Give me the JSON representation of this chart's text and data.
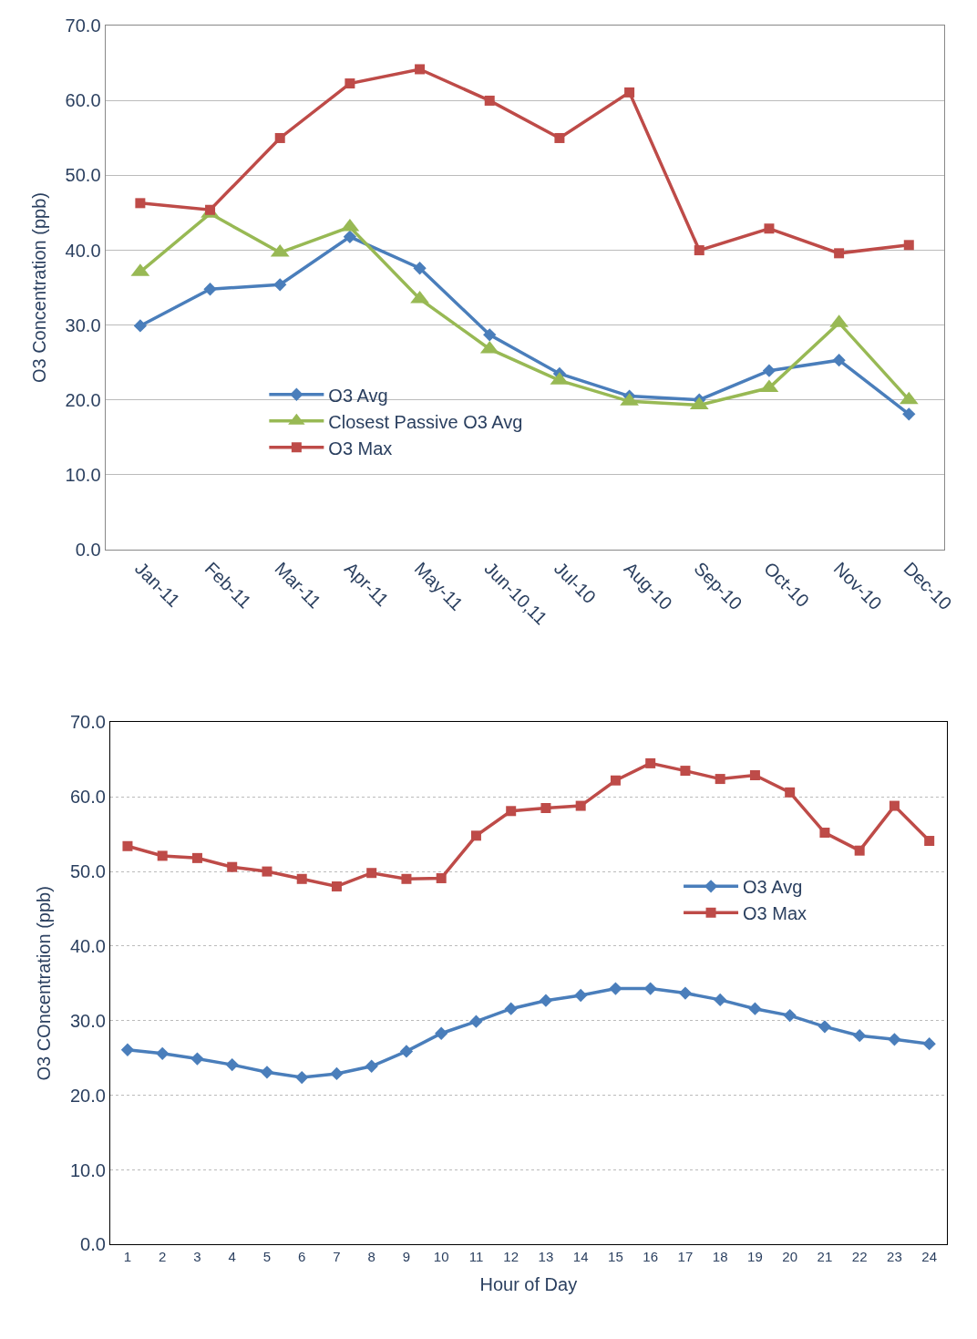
{
  "chart_data": [
    {
      "type": "line",
      "ylabel": "O3 Concentration (ppb)",
      "categories": [
        "Jan-11",
        "Feb-11",
        "Mar-11",
        "Apr-11",
        "May-11",
        "Jun-10,11",
        "Jul-10",
        "Aug-10",
        "Sep-10",
        "Oct-10",
        "Nov-10",
        "Dec-10"
      ],
      "series": [
        {
          "name": "O3 Avg",
          "color": "#4a7ebb",
          "marker": "diamond",
          "values": [
            29.9,
            34.8,
            35.4,
            41.8,
            37.6,
            28.7,
            23.5,
            20.5,
            20.0,
            23.9,
            25.3,
            18.1
          ]
        },
        {
          "name": "Closest Passive O3 Avg",
          "color": "#98b954",
          "marker": "triangle",
          "values": [
            37.1,
            44.9,
            39.7,
            43.1,
            33.5,
            26.8,
            22.6,
            19.8,
            19.3,
            21.6,
            30.3,
            20.0
          ]
        },
        {
          "name": "O3 Max",
          "color": "#be4b48",
          "marker": "square",
          "values": [
            46.3,
            45.4,
            55.0,
            62.3,
            64.2,
            60.0,
            55.0,
            61.1,
            40.0,
            42.9,
            39.6,
            40.7
          ]
        }
      ],
      "ylim": [
        0,
        70
      ],
      "yticks": [
        {
          "value": 0,
          "label": "0.0"
        },
        {
          "value": 10,
          "label": "10.0"
        },
        {
          "value": 20,
          "label": "20.0"
        },
        {
          "value": 30,
          "label": "30.0"
        },
        {
          "value": 40,
          "label": "40.0"
        },
        {
          "value": 50,
          "label": "50.0"
        },
        {
          "value": 60,
          "label": "60.0"
        },
        {
          "value": 70,
          "label": "70.0"
        }
      ],
      "grid": "y",
      "legend": "bottom left"
    },
    {
      "type": "line",
      "xlabel": "Hour of Day",
      "ylabel": "O3 COncentration (ppb)",
      "x": [
        1,
        2,
        3,
        4,
        5,
        6,
        7,
        8,
        9,
        10,
        11,
        12,
        13,
        14,
        15,
        16,
        17,
        18,
        19,
        20,
        21,
        22,
        23,
        24
      ],
      "xlim": [
        0.5,
        24.5
      ],
      "xticks": [
        1,
        2,
        3,
        4,
        5,
        6,
        7,
        8,
        9,
        10,
        11,
        12,
        13,
        14,
        15,
        16,
        17,
        18,
        19,
        20,
        21,
        22,
        23,
        24
      ],
      "series": [
        {
          "name": "O3 Avg",
          "color": "#4a7ebb",
          "marker": "diamond",
          "values": [
            26.1,
            25.6,
            24.9,
            24.1,
            23.1,
            22.4,
            22.9,
            23.9,
            25.9,
            28.3,
            29.9,
            31.6,
            32.7,
            33.4,
            34.3,
            34.3,
            33.7,
            32.8,
            31.6,
            30.7,
            29.2,
            28.0,
            27.5,
            26.9
          ]
        },
        {
          "name": "O3 Max",
          "color": "#be4b48",
          "marker": "square",
          "values": [
            53.4,
            52.1,
            51.8,
            50.6,
            50.0,
            49.0,
            48.0,
            49.8,
            49.0,
            49.1,
            54.8,
            58.1,
            58.5,
            58.8,
            62.2,
            64.5,
            63.5,
            62.4,
            62.9,
            60.6,
            55.2,
            52.8,
            58.8,
            54.1
          ]
        }
      ],
      "ylim": [
        0,
        70
      ],
      "yticks": [
        {
          "value": 0,
          "label": "0.0"
        },
        {
          "value": 10,
          "label": "10.0"
        },
        {
          "value": 20,
          "label": "20.0"
        },
        {
          "value": 30,
          "label": "30.0"
        },
        {
          "value": 40,
          "label": "40.0"
        },
        {
          "value": 50,
          "label": "50.0"
        },
        {
          "value": 60,
          "label": "60.0"
        },
        {
          "value": 70,
          "label": "70.0"
        }
      ],
      "grid": "y",
      "legend": "right"
    }
  ]
}
